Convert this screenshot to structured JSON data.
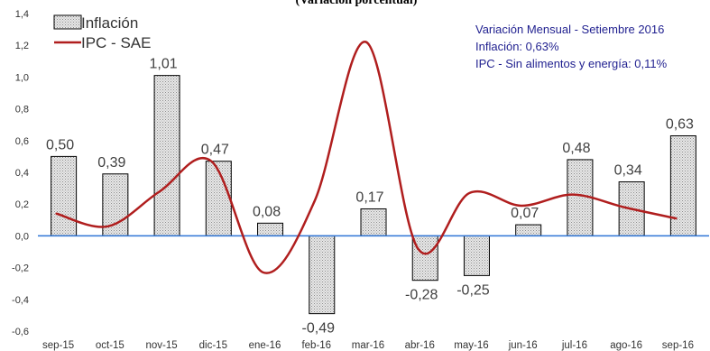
{
  "chart_data": {
    "type": "bar",
    "title": "(Variación porcentual)",
    "categories": [
      "sep-15",
      "oct-15",
      "nov-15",
      "dic-15",
      "ene-16",
      "feb-16",
      "mar-16",
      "abr-16",
      "may-16",
      "jun-16",
      "jul-16",
      "ago-16",
      "sep-16"
    ],
    "series": [
      {
        "name": "Inflación",
        "type": "bar",
        "values": [
          0.5,
          0.39,
          1.01,
          0.47,
          0.08,
          -0.49,
          0.17,
          -0.28,
          -0.25,
          0.07,
          0.48,
          0.34,
          0.63
        ],
        "labels": [
          "0,50",
          "0,39",
          "1,01",
          "0,47",
          "0,08",
          "-0,49",
          "0,17",
          "-0,28",
          "-0,25",
          "0,07",
          "0,48",
          "0,34",
          "0,63"
        ],
        "fill": "#d9d9d9",
        "stroke": "#000000"
      },
      {
        "name": "IPC - SAE",
        "type": "line",
        "smooth": true,
        "values": [
          0.14,
          0.06,
          0.28,
          0.47,
          -0.23,
          0.22,
          1.22,
          -0.08,
          0.27,
          0.19,
          0.26,
          0.18,
          0.11
        ],
        "color": "#b01e1e"
      }
    ],
    "ylim": [
      -0.6,
      1.4
    ],
    "yticks": [
      -0.6,
      -0.4,
      -0.2,
      0.0,
      0.2,
      0.4,
      0.6,
      0.8,
      1.0,
      1.2,
      1.4
    ],
    "ytick_labels": [
      "-0,6",
      "-0,4",
      "-0,2",
      "0,0",
      "0,2",
      "0,4",
      "0,6",
      "0,8",
      "1,0",
      "1,2",
      "1,4"
    ],
    "grid": false,
    "legend": "top-left",
    "zero_line_color": "#2e75d6",
    "annotation": {
      "lines": [
        "Variación Mensual - Setiembre 2016",
        "Inflación: 0,63%",
        "IPC - Sin alimentos y energía: 0,11%"
      ],
      "color": "#1f1f8f",
      "placement": "top-right"
    }
  }
}
